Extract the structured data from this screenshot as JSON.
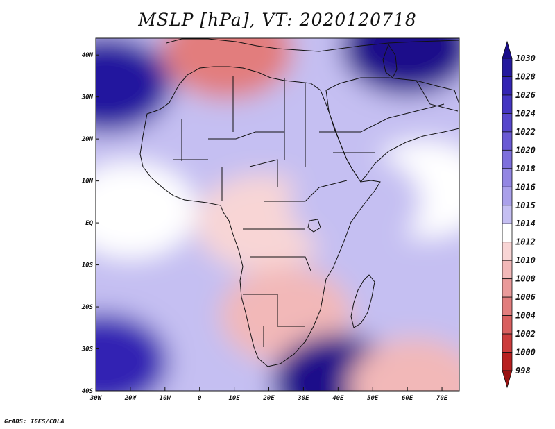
{
  "chart_data": {
    "type": "heatmap",
    "title": "MSLP [hPa], VT: 2020120718",
    "variable": "MSLP",
    "units": "hPa",
    "valid_time": "2020120718",
    "x_ticks": [
      "30W",
      "20W",
      "10W",
      "0",
      "10E",
      "20E",
      "30E",
      "40E",
      "50E",
      "60E",
      "70E"
    ],
    "x_tick_values": [
      -30,
      -20,
      -10,
      0,
      10,
      20,
      30,
      40,
      50,
      60,
      70
    ],
    "y_ticks": [
      "40N",
      "30N",
      "20N",
      "10N",
      "EQ",
      "10S",
      "20S",
      "30S",
      "40S"
    ],
    "y_tick_values": [
      40,
      30,
      20,
      10,
      0,
      -10,
      -20,
      -30,
      -40
    ],
    "xlim": [
      -30,
      75
    ],
    "ylim": [
      -40,
      44
    ],
    "colorbar": {
      "levels": [
        998,
        1000,
        1002,
        1004,
        1006,
        1008,
        1010,
        1012,
        1014,
        1015,
        1016,
        1018,
        1020,
        1022,
        1024,
        1026,
        1028,
        1030
      ],
      "labels": [
        "1030",
        "1028",
        "1026",
        "1024",
        "1022",
        "1020",
        "1018",
        "1016",
        "1015",
        "1014",
        "1012",
        "1010",
        "1008",
        "1006",
        "1004",
        "1002",
        "1000",
        "998"
      ],
      "colors": [
        "#1a0d8a",
        "#24199e",
        "#3324b3",
        "#4435c2",
        "#5646cc",
        "#6a5ad4",
        "#7d6fdc",
        "#9386e3",
        "#aaa0ea",
        "#c5bff2",
        "#ffffff",
        "#f8d5d5",
        "#f2b8b8",
        "#ea9a9a",
        "#e27d7d",
        "#d95f5f",
        "#cc3b3b",
        "#b81f1f",
        "#981111"
      ]
    },
    "pressure_centers": [
      {
        "lon": -27,
        "lat": 33,
        "value": 1028
      },
      {
        "lon": 8,
        "lat": 41,
        "value": 1004
      },
      {
        "lon": 60,
        "lat": 42,
        "value": 1030
      },
      {
        "lon": 18,
        "lat": 0,
        "value": 1010
      },
      {
        "lon": 25,
        "lat": -22,
        "value": 1008
      },
      {
        "lon": 40,
        "lat": -38,
        "value": 1030
      },
      {
        "lon": -28,
        "lat": -33,
        "value": 1026
      },
      {
        "lon": 62,
        "lat": -39,
        "value": 1008
      },
      {
        "lon": 65,
        "lat": 8,
        "value": 1012
      },
      {
        "lon": 45,
        "lat": 5,
        "value": 1014
      },
      {
        "lon": -20,
        "lat": 3,
        "value": 1012
      }
    ]
  },
  "footer": {
    "credit": "GrADS: IGES/COLA"
  }
}
